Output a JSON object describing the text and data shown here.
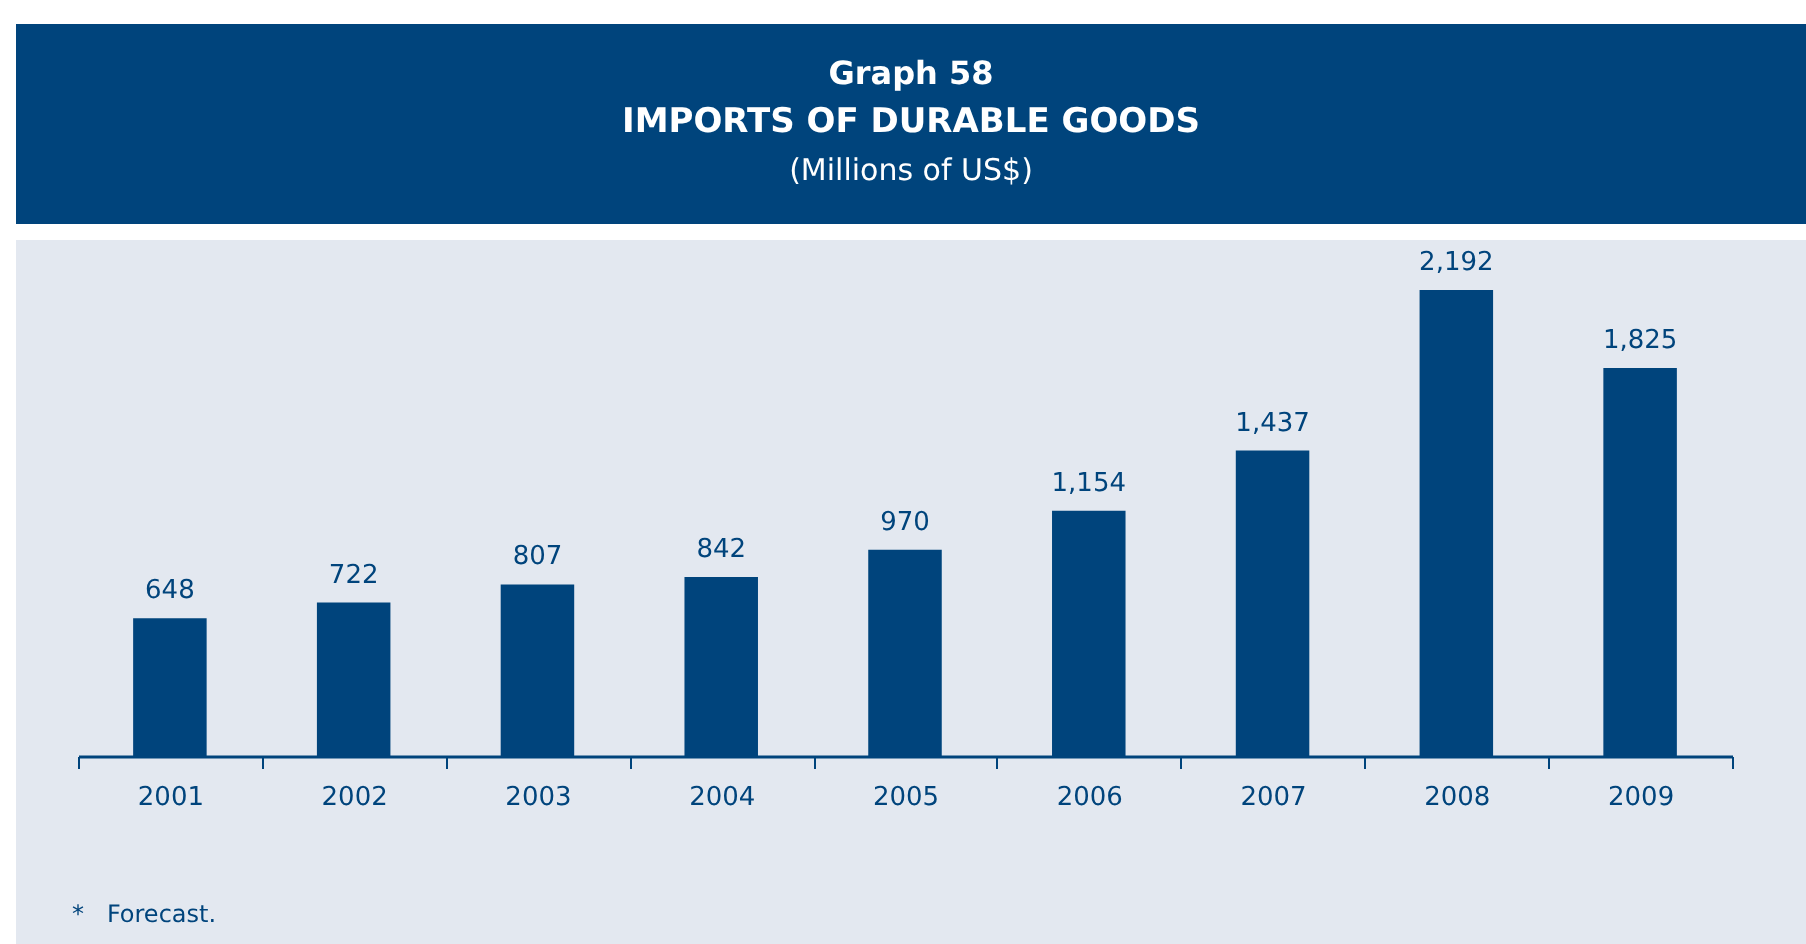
{
  "chart_data": {
    "type": "bar",
    "title": "IMPORTS OF DURABLE GOODS",
    "subtitle": "(Millions of US$)",
    "annotations": [
      "Graph 58",
      "*   Forecast."
    ],
    "categories": [
      "2001",
      "2002",
      "2003",
      "2004",
      "2005",
      "2006",
      "2007",
      "2008",
      "2009"
    ],
    "values": [
      648,
      722,
      807,
      842,
      970,
      1154,
      1437,
      2192,
      1825
    ],
    "value_labels": [
      "648",
      "722",
      "807",
      "842",
      "970",
      "1,154",
      "1,437",
      "2,192",
      "1,825"
    ],
    "color": "#00447c"
  }
}
